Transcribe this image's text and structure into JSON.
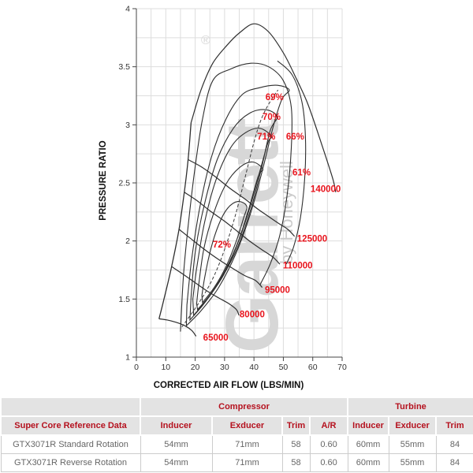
{
  "colors": {
    "chart_label_red": "#e8131c",
    "table_red": "#b5121f",
    "curve": "#2e2e2e",
    "grid": "#dddddd",
    "axis": "#444444",
    "axis_text": "#333333",
    "watermark": "#d7d7d7",
    "watermark_byline": "#cbcbcb",
    "header_bg": "#e3e3e3",
    "data_text": "#666666",
    "border": "#cccccc"
  },
  "chart_data": {
    "type": "line",
    "title": "",
    "xlabel": "CORRECTED AIR FLOW (LBS/MIN)",
    "ylabel": "PRESSURE RATIO",
    "xlim": [
      0,
      70
    ],
    "ylim": [
      1,
      4
    ],
    "x_ticks": [
      "0",
      "10",
      "20",
      "30",
      "40",
      "50",
      "60",
      "70"
    ],
    "y_ticks": [
      "1",
      "1.5",
      "2",
      "2.5",
      "3",
      "3.5",
      "4"
    ],
    "grid": "on",
    "watermark": {
      "brand": "Garrett",
      "registered": "®",
      "byline": "by Honeywell"
    },
    "surge_line": [
      [
        7.7,
        1.33
      ],
      [
        9.4,
        1.5
      ],
      [
        12,
        1.78
      ],
      [
        14.5,
        2.1
      ],
      [
        16.3,
        2.42
      ],
      [
        17.6,
        2.7
      ],
      [
        18.6,
        3.02
      ]
    ],
    "speed_lines": [
      {
        "rpm": "65000",
        "label": "65000",
        "label_at": [
          27.0,
          1.17
        ],
        "points": [
          [
            7.7,
            1.33
          ],
          [
            10.5,
            1.32
          ],
          [
            13.5,
            1.3
          ],
          [
            16.5,
            1.27
          ],
          [
            18.8,
            1.23
          ],
          [
            20.3,
            1.18
          ]
        ]
      },
      {
        "rpm": "80000",
        "label": "80000",
        "label_at": [
          39.4,
          1.37
        ],
        "points": [
          [
            12,
            1.78
          ],
          [
            15.5,
            1.72
          ],
          [
            19.5,
            1.65
          ],
          [
            24,
            1.57
          ],
          [
            28,
            1.51
          ],
          [
            31.5,
            1.46
          ],
          [
            34,
            1.41
          ],
          [
            34.9,
            1.36
          ]
        ]
      },
      {
        "rpm": "95000",
        "label": "95000",
        "label_at": [
          48.0,
          1.58
        ],
        "points": [
          [
            14.5,
            2.1
          ],
          [
            18.5,
            2.02
          ],
          [
            23,
            1.93
          ],
          [
            28,
            1.84
          ],
          [
            33,
            1.76
          ],
          [
            37,
            1.7
          ],
          [
            40.5,
            1.66
          ],
          [
            42.8,
            1.6
          ]
        ]
      },
      {
        "rpm": "110000",
        "label": "110000",
        "label_at": [
          54.9,
          1.79
        ],
        "points": [
          [
            16.3,
            2.42
          ],
          [
            20.5,
            2.35
          ],
          [
            25,
            2.26
          ],
          [
            30,
            2.17
          ],
          [
            35,
            2.07
          ],
          [
            39,
            1.99
          ],
          [
            43,
            1.92
          ],
          [
            46.5,
            1.86
          ],
          [
            48.8,
            1.8
          ]
        ]
      },
      {
        "rpm": "125000",
        "label": "125000",
        "label_at": [
          59.8,
          2.02
        ],
        "points": [
          [
            17.6,
            2.7
          ],
          [
            22,
            2.64
          ],
          [
            27,
            2.55
          ],
          [
            32,
            2.45
          ],
          [
            37,
            2.36
          ],
          [
            41,
            2.28
          ],
          [
            45,
            2.21
          ],
          [
            48.5,
            2.15
          ],
          [
            51.5,
            2.1
          ],
          [
            53.8,
            2.04
          ]
        ]
      },
      {
        "rpm": "140000",
        "label": "140000",
        "label_at": [
          64.4,
          2.45
        ],
        "points": [
          [
            18.6,
            3.02
          ],
          [
            22,
            3.3
          ],
          [
            26,
            3.53
          ],
          [
            31,
            3.69
          ],
          [
            35,
            3.79
          ],
          [
            40,
            3.87
          ],
          [
            45,
            3.8
          ],
          [
            50,
            3.62
          ],
          [
            54,
            3.42
          ],
          [
            58,
            3.2
          ],
          [
            61.5,
            2.95
          ],
          [
            64.5,
            2.72
          ],
          [
            67,
            2.52
          ],
          [
            67.8,
            2.42
          ]
        ]
      }
    ],
    "efficiency_islands": [
      {
        "label": "",
        "closed": true,
        "points": [
          [
            22.5,
            1.47
          ],
          [
            26.5,
            1.6
          ],
          [
            30.5,
            1.78
          ],
          [
            34,
            2.0
          ],
          [
            36.5,
            2.2
          ],
          [
            37.5,
            2.3
          ],
          [
            34.5,
            2.34
          ],
          [
            31,
            2.28
          ],
          [
            28,
            2.14
          ],
          [
            25.2,
            1.92
          ],
          [
            23.2,
            1.68
          ],
          [
            22.3,
            1.53
          ]
        ]
      },
      {
        "label": "72%",
        "closed": true,
        "label_at": [
          29.1,
          1.97
        ],
        "points": [
          [
            20.8,
            1.41
          ],
          [
            25.5,
            1.55
          ],
          [
            30.5,
            1.76
          ],
          [
            35,
            2.02
          ],
          [
            38.5,
            2.3
          ],
          [
            41.5,
            2.56
          ],
          [
            43,
            2.62
          ],
          [
            39.5,
            2.68
          ],
          [
            35,
            2.63
          ],
          [
            30.5,
            2.49
          ],
          [
            26.3,
            2.24
          ],
          [
            23,
            1.94
          ],
          [
            21.2,
            1.62
          ],
          [
            20.5,
            1.46
          ]
        ]
      },
      {
        "label": "71%",
        "closed": true,
        "label_at": [
          44.2,
          2.9
        ],
        "points": [
          [
            19.5,
            1.36
          ],
          [
            24,
            1.5
          ],
          [
            29.5,
            1.7
          ],
          [
            34.5,
            1.98
          ],
          [
            38.5,
            2.28
          ],
          [
            42,
            2.6
          ],
          [
            44.8,
            2.85
          ],
          [
            46,
            2.9
          ],
          [
            42,
            2.97
          ],
          [
            37,
            2.93
          ],
          [
            32,
            2.8
          ],
          [
            27,
            2.52
          ],
          [
            23.2,
            2.16
          ],
          [
            20.6,
            1.78
          ],
          [
            19.2,
            1.5
          ]
        ]
      },
      {
        "label": "70%",
        "closed": true,
        "label_at": [
          46.0,
          3.07
        ],
        "points": [
          [
            18.2,
            1.32
          ],
          [
            23,
            1.46
          ],
          [
            29,
            1.68
          ],
          [
            34.5,
            1.95
          ],
          [
            39,
            2.28
          ],
          [
            42.5,
            2.62
          ],
          [
            45.5,
            2.95
          ],
          [
            47.9,
            3.07
          ],
          [
            44,
            3.13
          ],
          [
            38.5,
            3.1
          ],
          [
            33,
            2.97
          ],
          [
            27.5,
            2.7
          ],
          [
            23,
            2.3
          ],
          [
            20,
            1.9
          ],
          [
            18.6,
            1.52
          ]
        ]
      },
      {
        "label": "69%",
        "closed": true,
        "label_at": [
          47.0,
          3.24
        ],
        "points": [
          [
            17,
            1.27
          ],
          [
            22,
            1.4
          ],
          [
            28,
            1.6
          ],
          [
            34,
            1.9
          ],
          [
            39,
            2.25
          ],
          [
            43,
            2.62
          ],
          [
            46.5,
            2.98
          ],
          [
            49.5,
            3.22
          ],
          [
            52,
            3.3
          ],
          [
            48,
            3.34
          ],
          [
            42,
            3.32
          ],
          [
            36,
            3.26
          ],
          [
            30.5,
            3.05
          ],
          [
            25.5,
            2.72
          ],
          [
            21.5,
            2.28
          ],
          [
            18.7,
            1.82
          ],
          [
            17.2,
            1.45
          ]
        ]
      },
      {
        "label": "66%",
        "closed": false,
        "label_at": [
          54.0,
          2.9
        ],
        "points": [
          [
            15,
            1.22
          ],
          [
            16,
            1.7
          ],
          [
            17.7,
            2.15
          ],
          [
            19.8,
            2.6
          ],
          [
            22.5,
            3.05
          ],
          [
            26,
            3.38
          ],
          [
            32,
            3.48
          ],
          [
            39,
            3.53
          ],
          [
            45,
            3.5
          ],
          [
            50,
            3.38
          ],
          [
            52.7,
            3.15
          ],
          [
            52.7,
            2.8
          ],
          [
            51.3,
            2.4
          ],
          [
            48.8,
            2.05
          ],
          [
            45.5,
            1.8
          ],
          [
            42,
            1.62
          ]
        ]
      },
      {
        "label": "61%",
        "closed": false,
        "label_at": [
          56.2,
          2.59
        ],
        "points": [
          [
            48,
            3.55
          ],
          [
            53,
            3.43
          ],
          [
            56.3,
            3.2
          ],
          [
            57.5,
            2.9
          ],
          [
            57.3,
            2.55
          ],
          [
            55.8,
            2.2
          ],
          [
            53.5,
            1.95
          ],
          [
            51,
            1.8
          ]
        ]
      }
    ],
    "peak_efficiency_line": {
      "style": "dashed",
      "points": [
        [
          15.5,
          1.26
        ],
        [
          20,
          1.42
        ],
        [
          24,
          1.58
        ],
        [
          27.5,
          1.76
        ],
        [
          31,
          2.0
        ],
        [
          34,
          2.25
        ],
        [
          37,
          2.55
        ],
        [
          40,
          2.85
        ],
        [
          42.5,
          3.05
        ],
        [
          45.5,
          3.2
        ],
        [
          48.2,
          3.3
        ]
      ]
    }
  },
  "table": {
    "group_headers": {
      "spacer": "",
      "compressor": "Compressor",
      "turbine": "Turbine"
    },
    "columns": [
      "Super Core Reference Data",
      "Inducer",
      "Exducer",
      "Trim",
      "A/R",
      "Inducer",
      "Exducer",
      "Trim"
    ],
    "rows": [
      {
        "name": "GTX3071R Standard Rotation",
        "values": [
          "54mm",
          "71mm",
          "58",
          "0.60",
          "60mm",
          "55mm",
          "84"
        ]
      },
      {
        "name": "GTX3071R Reverse Rotation",
        "values": [
          "54mm",
          "71mm",
          "58",
          "0.60",
          "60mm",
          "55mm",
          "84"
        ]
      }
    ]
  }
}
